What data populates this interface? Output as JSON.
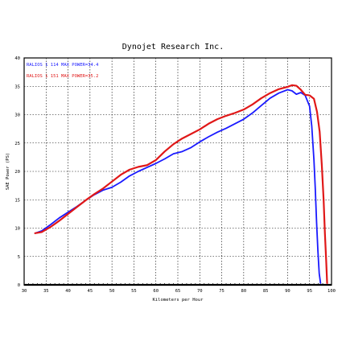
{
  "chart_data": {
    "type": "line",
    "title": "Dynojet  Research  Inc.",
    "xlabel": "Kilometers per Hour",
    "ylabel": "SAE Power (PS)",
    "xlim": [
      30,
      100
    ],
    "ylim": [
      0,
      40
    ],
    "xticks": [
      30,
      35,
      40,
      45,
      50,
      55,
      60,
      65,
      70,
      75,
      80,
      85,
      90,
      95,
      100
    ],
    "yticks": [
      0,
      5,
      10,
      15,
      20,
      25,
      30,
      35,
      40
    ],
    "grid": true,
    "legend_position": "top-left",
    "series": [
      {
        "name": "RALIOS 1 114  MAX POWER=34.4",
        "color": "#1a1aff",
        "x": [
          32.5,
          34,
          36,
          38,
          40,
          42,
          44,
          46,
          48,
          50,
          52,
          54,
          56,
          58,
          60,
          62,
          64,
          66,
          68,
          70,
          72,
          74,
          76,
          78,
          80,
          82,
          84,
          86,
          88,
          90,
          91,
          92,
          93,
          94,
          95,
          95.5,
          96,
          96.3,
          96.6,
          96.9,
          97.2,
          97.5
        ],
        "y": [
          9.1,
          9.5,
          10.6,
          11.8,
          12.8,
          13.8,
          14.9,
          15.9,
          16.7,
          17.2,
          18.1,
          19.2,
          20.0,
          20.7,
          21.4,
          22.2,
          23.1,
          23.5,
          24.2,
          25.2,
          26.1,
          26.9,
          27.6,
          28.4,
          29.2,
          30.3,
          31.6,
          32.9,
          33.8,
          34.4,
          34.2,
          33.6,
          33.9,
          33.4,
          31.5,
          28.0,
          22.0,
          17.0,
          11.0,
          6.0,
          2.0,
          0.3
        ]
      },
      {
        "name": "RALIOS 1 151  MAX POWER=35.2",
        "color": "#e01818",
        "x": [
          32.5,
          34,
          36,
          38,
          40,
          42,
          44,
          46,
          48,
          50,
          52,
          54,
          56,
          58,
          60,
          62,
          64,
          66,
          68,
          70,
          72,
          74,
          76,
          78,
          80,
          82,
          84,
          86,
          88,
          90,
          91,
          92,
          93,
          94,
          95,
          96,
          96.7,
          97.3,
          97.8,
          98.2,
          98.5,
          98.8,
          99.0
        ],
        "y": [
          9.1,
          9.3,
          10.2,
          11.3,
          12.5,
          13.7,
          14.9,
          16.0,
          17.0,
          18.2,
          19.4,
          20.3,
          20.8,
          21.1,
          22.0,
          23.5,
          24.8,
          25.8,
          26.6,
          27.4,
          28.4,
          29.2,
          29.8,
          30.3,
          30.9,
          31.8,
          32.9,
          33.8,
          34.5,
          34.9,
          35.2,
          35.1,
          34.4,
          33.5,
          33.4,
          32.8,
          30.5,
          27.0,
          21.0,
          15.0,
          9.0,
          4.0,
          0.3
        ]
      }
    ]
  }
}
